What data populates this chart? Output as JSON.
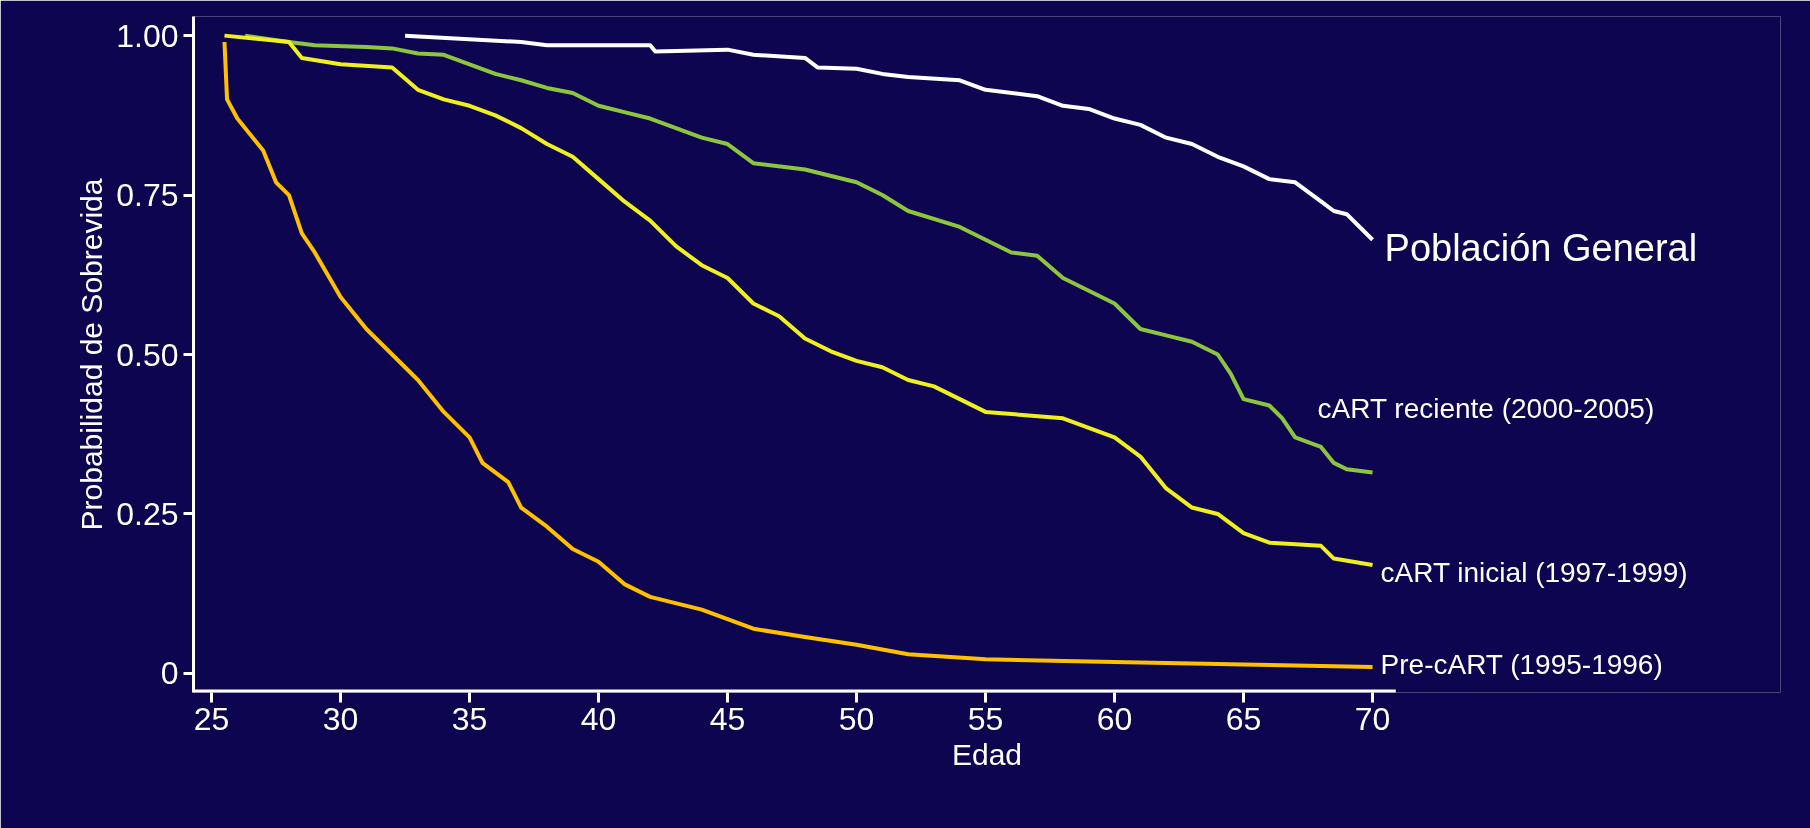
{
  "chart_data": {
    "type": "line",
    "xlabel": "Edad",
    "ylabel": "Probabilidad de Sobrevida",
    "xlim": [
      24.3,
      70.9
    ],
    "ylim": [
      -0.03,
      1.03
    ],
    "xticks": [
      25,
      30,
      35,
      40,
      45,
      50,
      55,
      60,
      65,
      70
    ],
    "yticks": [
      {
        "value": 0,
        "label": "0"
      },
      {
        "value": 0.25,
        "label": "0.25"
      },
      {
        "value": 0.5,
        "label": "0.50"
      },
      {
        "value": 0.75,
        "label": "0.75"
      },
      {
        "value": 1,
        "label": "1.00"
      }
    ],
    "grid": false,
    "legend": false,
    "line_style": "solid",
    "marker": "none",
    "series": [
      {
        "name": "Población General",
        "color": "#ffffff",
        "x": [
          32.5,
          37,
          38,
          42,
          42.2,
          45,
          46,
          48,
          48.5,
          50,
          51,
          52,
          54,
          55,
          57,
          58,
          59,
          60,
          61,
          62,
          63,
          64,
          65,
          66,
          67,
          68,
          68.5,
          69,
          69.5,
          70
        ],
        "values": [
          1.0,
          0.99,
          0.985,
          0.985,
          0.975,
          0.978,
          0.97,
          0.965,
          0.95,
          0.948,
          0.94,
          0.935,
          0.93,
          0.915,
          0.905,
          0.89,
          0.885,
          0.87,
          0.86,
          0.84,
          0.83,
          0.81,
          0.795,
          0.775,
          0.77,
          0.74,
          0.725,
          0.72,
          0.7,
          0.68
        ]
      },
      {
        "name": "cART  reciente (2000-2005)",
        "color": "#8cc63f",
        "x": [
          26.3,
          28,
          29,
          31,
          32,
          33,
          34,
          35,
          36,
          37,
          38,
          39,
          40,
          41,
          42,
          43,
          44,
          45,
          46,
          48,
          50,
          51,
          52,
          54,
          55,
          56,
          57,
          58,
          59,
          60,
          61,
          62,
          63,
          64,
          64.5,
          65,
          66,
          66.5,
          67,
          68,
          68.5,
          69,
          70
        ],
        "values": [
          1.0,
          0.99,
          0.985,
          0.982,
          0.98,
          0.972,
          0.97,
          0.955,
          0.94,
          0.93,
          0.918,
          0.91,
          0.89,
          0.88,
          0.87,
          0.855,
          0.84,
          0.83,
          0.8,
          0.79,
          0.77,
          0.75,
          0.725,
          0.7,
          0.68,
          0.66,
          0.655,
          0.62,
          0.6,
          0.58,
          0.54,
          0.53,
          0.52,
          0.5,
          0.47,
          0.43,
          0.42,
          0.4,
          0.37,
          0.355,
          0.33,
          0.32,
          0.315
        ]
      },
      {
        "name": "cART inicial (1997-1999)",
        "color": "#f0f020",
        "x": [
          25.5,
          28,
          28.5,
          30,
          32,
          33,
          34,
          35,
          36,
          37,
          38,
          39,
          40,
          41,
          42,
          43,
          44,
          45,
          46,
          47,
          48,
          49,
          50,
          51,
          52,
          53,
          54,
          55,
          58,
          59,
          60,
          61,
          62,
          63,
          64,
          65,
          66,
          68,
          68.5,
          70
        ],
        "values": [
          1.0,
          0.99,
          0.965,
          0.955,
          0.95,
          0.915,
          0.9,
          0.89,
          0.875,
          0.855,
          0.83,
          0.81,
          0.775,
          0.74,
          0.71,
          0.67,
          0.64,
          0.62,
          0.58,
          0.56,
          0.525,
          0.505,
          0.49,
          0.48,
          0.46,
          0.45,
          0.43,
          0.41,
          0.4,
          0.385,
          0.37,
          0.34,
          0.29,
          0.26,
          0.25,
          0.22,
          0.205,
          0.2,
          0.18,
          0.17
        ]
      },
      {
        "name": "Pre-cART (1995-1996)",
        "color": "#ffc000",
        "x": [
          25.5,
          25.6,
          26,
          27,
          27.5,
          28,
          28.5,
          29,
          30,
          31,
          32,
          33,
          34,
          35,
          35.5,
          36.5,
          37,
          38,
          39,
          40,
          41,
          42,
          44,
          46,
          48,
          50,
          52,
          55,
          60,
          65,
          70
        ],
        "values": [
          0.99,
          0.9,
          0.87,
          0.82,
          0.77,
          0.75,
          0.69,
          0.66,
          0.59,
          0.54,
          0.5,
          0.46,
          0.41,
          0.37,
          0.33,
          0.3,
          0.26,
          0.23,
          0.195,
          0.175,
          0.14,
          0.12,
          0.1,
          0.07,
          0.057,
          0.045,
          0.03,
          0.022,
          0.018,
          0.014,
          0.01
        ]
      }
    ]
  }
}
